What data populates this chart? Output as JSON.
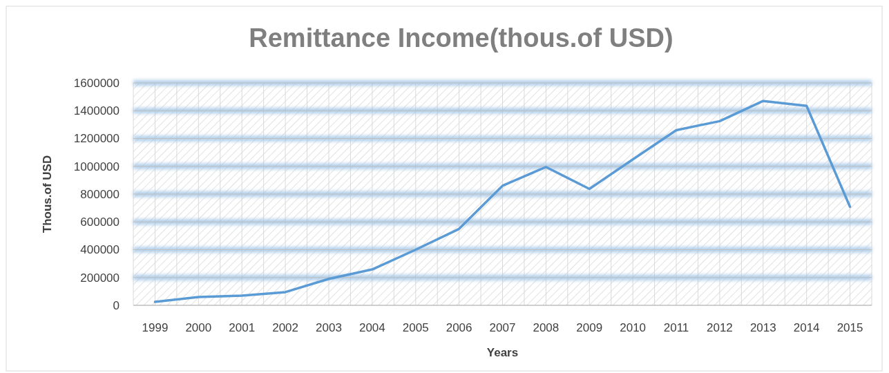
{
  "chart_data": {
    "type": "line",
    "title": "Remittance Income(thous.of USD)",
    "xlabel": "Years",
    "ylabel": "Thous.of USD",
    "categories": [
      "1999",
      "2000",
      "2001",
      "2002",
      "2003",
      "2004",
      "2005",
      "2006",
      "2007",
      "2008",
      "2009",
      "2010",
      "2011",
      "2012",
      "2013",
      "2014",
      "2015"
    ],
    "series": [
      {
        "color": "#5b9bd5",
        "values": [
          25000,
          60000,
          70000,
          95000,
          190000,
          258000,
          400000,
          550000,
          860000,
          995000,
          837000,
          1050000,
          1260000,
          1325000,
          1470000,
          1435000,
          708000
        ]
      }
    ],
    "ylim": [
      0,
      1600000
    ],
    "yticks": [
      0,
      200000,
      400000,
      600000,
      800000,
      1000000,
      1200000,
      1400000,
      1600000
    ],
    "grid": true,
    "marker": "none",
    "line_style": "solid"
  }
}
